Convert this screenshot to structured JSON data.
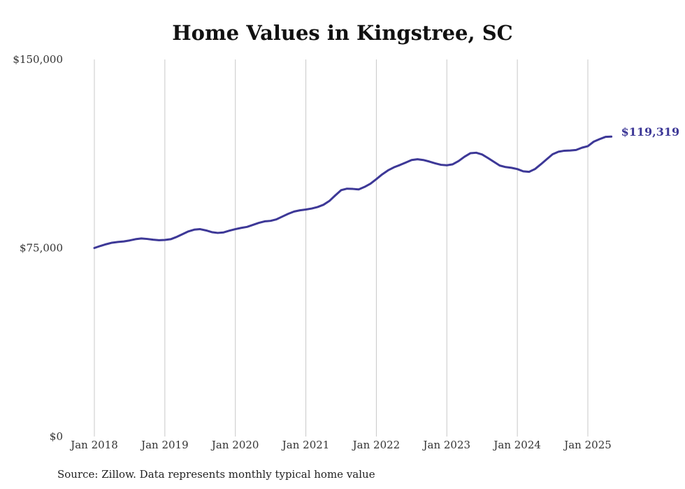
{
  "chart_data": {
    "type": "line",
    "title": "Home Values in Kingstree, SC",
    "source": "Source: Zillow. Data represents monthly typical home value",
    "xlabel": "",
    "ylabel": "",
    "ylim": [
      0,
      150000
    ],
    "y_ticks": [
      {
        "value": 0,
        "label": "$0"
      },
      {
        "value": 75000,
        "label": "$75,000"
      },
      {
        "value": 150000,
        "label": "$150,000"
      }
    ],
    "x_ticks": [
      {
        "date": "2018-01",
        "label": "Jan 2018"
      },
      {
        "date": "2019-01",
        "label": "Jan 2019"
      },
      {
        "date": "2020-01",
        "label": "Jan 2020"
      },
      {
        "date": "2021-01",
        "label": "Jan 2021"
      },
      {
        "date": "2022-01",
        "label": "Jan 2022"
      },
      {
        "date": "2023-01",
        "label": "Jan 2023"
      },
      {
        "date": "2024-01",
        "label": "Jan 2024"
      },
      {
        "date": "2025-01",
        "label": "Jan 2025"
      }
    ],
    "grid": "vertical",
    "legend": "none",
    "line_color": "#3d3897",
    "grid_color": "#c8c8c8",
    "end_label": "$119,319",
    "series": [
      {
        "x": [
          "2018-01",
          "2018-02",
          "2018-03",
          "2018-04",
          "2018-05",
          "2018-06",
          "2018-07",
          "2018-08",
          "2018-09",
          "2018-10",
          "2018-11",
          "2018-12",
          "2019-01",
          "2019-02",
          "2019-03",
          "2019-04",
          "2019-05",
          "2019-06",
          "2019-07",
          "2019-08",
          "2019-09",
          "2019-10",
          "2019-11",
          "2019-12",
          "2020-01",
          "2020-02",
          "2020-03",
          "2020-04",
          "2020-05",
          "2020-06",
          "2020-07",
          "2020-08",
          "2020-09",
          "2020-10",
          "2020-11",
          "2020-12",
          "2021-01",
          "2021-02",
          "2021-03",
          "2021-04",
          "2021-05",
          "2021-06",
          "2021-07",
          "2021-08",
          "2021-09",
          "2021-10",
          "2021-11",
          "2021-12",
          "2022-01",
          "2022-02",
          "2022-03",
          "2022-04",
          "2022-05",
          "2022-06",
          "2022-07",
          "2022-08",
          "2022-09",
          "2022-10",
          "2022-11",
          "2022-12",
          "2023-01",
          "2023-02",
          "2023-03",
          "2023-04",
          "2023-05",
          "2023-06",
          "2023-07",
          "2023-08",
          "2023-09",
          "2023-10",
          "2023-11",
          "2023-12",
          "2024-01",
          "2024-02",
          "2024-03",
          "2024-04",
          "2024-05",
          "2024-06",
          "2024-07",
          "2024-08",
          "2024-09",
          "2024-10",
          "2024-11",
          "2024-12",
          "2025-01",
          "2025-02",
          "2025-03",
          "2025-04",
          "2025-05"
        ],
        "values": [
          75000,
          75800,
          76500,
          77100,
          77400,
          77600,
          78000,
          78500,
          78800,
          78600,
          78300,
          78100,
          78200,
          78500,
          79400,
          80500,
          81600,
          82300,
          82500,
          82000,
          81300,
          81000,
          81200,
          81900,
          82500,
          83000,
          83400,
          84200,
          85000,
          85600,
          85800,
          86400,
          87500,
          88600,
          89500,
          90000,
          90300,
          90700,
          91300,
          92200,
          93700,
          95900,
          98000,
          98600,
          98500,
          98300,
          99300,
          100600,
          102400,
          104300,
          105900,
          107100,
          108000,
          109000,
          110000,
          110300,
          110000,
          109400,
          108700,
          108100,
          107900,
          108300,
          109600,
          111300,
          112700,
          112900,
          112200,
          110800,
          109300,
          107800,
          107200,
          106900,
          106400,
          105500,
          105300,
          106400,
          108300,
          110300,
          112300,
          113300,
          113700,
          113800,
          114000,
          114900,
          115500,
          117300,
          118300,
          119200,
          119319
        ]
      }
    ]
  }
}
